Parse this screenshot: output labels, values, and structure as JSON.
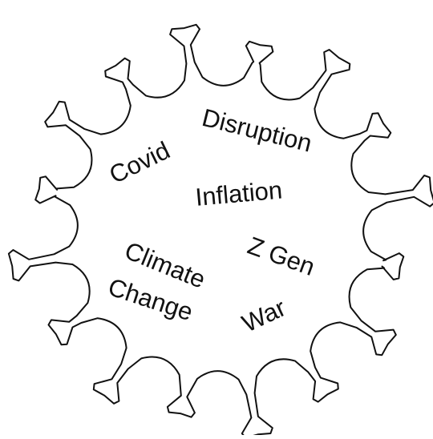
{
  "words": {
    "disruption": "Disruption",
    "covid": "Covid",
    "inflation": "Inflation",
    "z_gen": "Z Gen",
    "climate_change": [
      "Climate",
      "Change"
    ],
    "war": "War"
  }
}
